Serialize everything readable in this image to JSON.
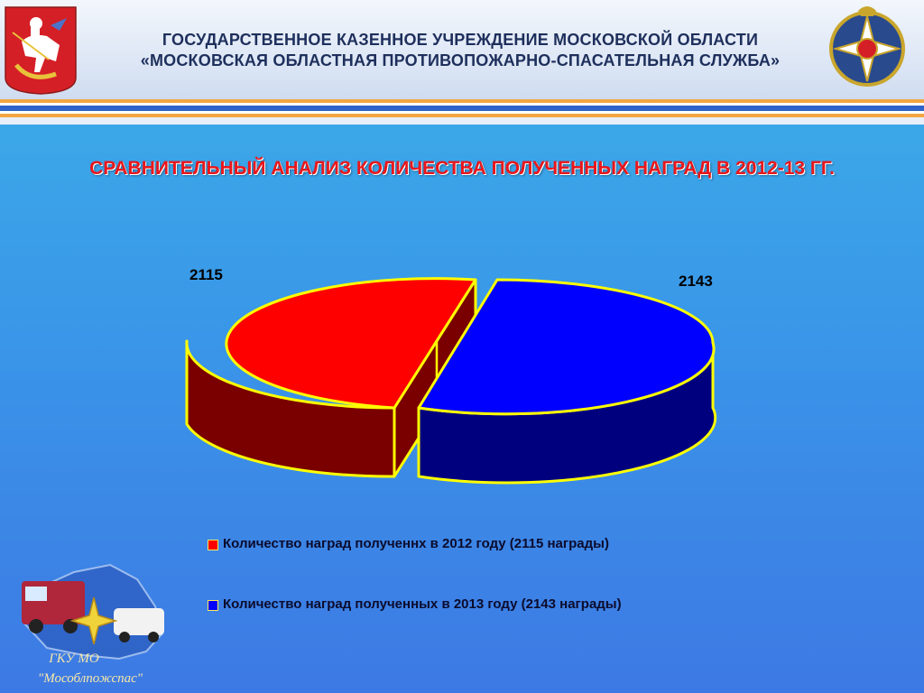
{
  "header": {
    "line1": "ГОСУДАРСТВЕННОЕ КАЗЕННОЕ УЧРЕЖДЕНИЕ МОСКОВСКОЙ ОБЛАСТИ",
    "line2": "«МОСКОВСКАЯ ОБЛАСТНАЯ ПРОТИВОПОЖАРНО-СПАСАТЕЛЬНАЯ СЛУЖБА»"
  },
  "logos": {
    "left": "moscow-oblast-coat-of-arms",
    "right": "fire-rescue-emblem",
    "bottom_left": "gku-mo-mosoblpozhspas-emblem",
    "bottom_left_text_1": "ГКУ МО",
    "bottom_left_text_2": "\"Мособлпожспас\""
  },
  "colors": {
    "title": "#e8171c",
    "series_2012": "#ff0000",
    "series_2013": "#0000ff",
    "outline": "#ffff00",
    "background_top": "#3ba7e8",
    "background_bottom": "#3d79e4"
  },
  "chart_data": {
    "type": "pie",
    "title": "СРАВНИТЕЛЬНЫЙ АНАЛИЗ КОЛИЧЕСТВА ПОЛУЧЕННЫХ НАГРАД В 2012-13 ГГ.",
    "style": "3d-exploded",
    "series": [
      {
        "name": "Количество наград полученнх в 2012 году (2115 награды)",
        "value": 2115,
        "label": "2115",
        "color": "#ff0000"
      },
      {
        "name": "Количество наград полученных в 2013 году (2143 награды)",
        "value": 2143,
        "label": "2143",
        "color": "#0000ff"
      }
    ],
    "legend": "bottom"
  }
}
